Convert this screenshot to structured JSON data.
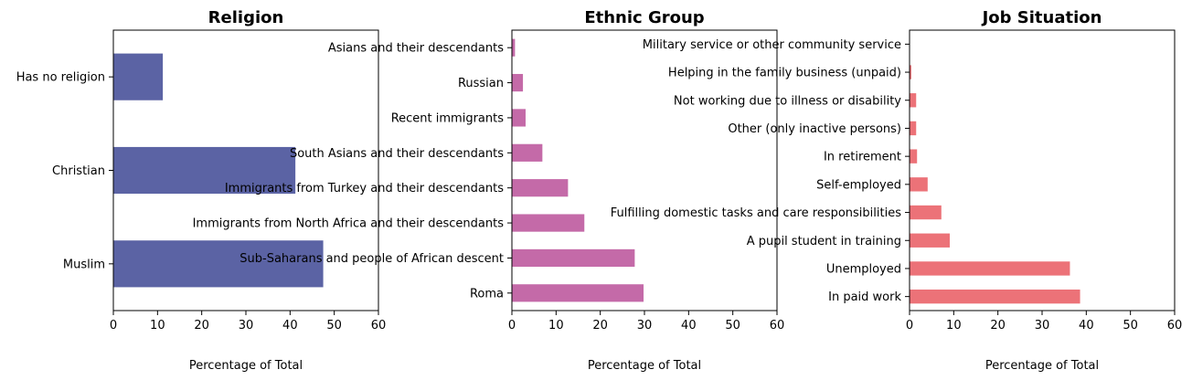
{
  "chart_data": [
    {
      "type": "bar",
      "orientation": "horizontal",
      "title": "Religion",
      "xlabel": "Percentage of Total",
      "xlim": [
        0,
        60
      ],
      "xticks": [
        0,
        10,
        20,
        30,
        40,
        50,
        60
      ],
      "categories": [
        "Muslim",
        "Christian",
        "Has no religion"
      ],
      "values": [
        47.5,
        41.2,
        11.2
      ],
      "color": "#5b63a4",
      "grid": false
    },
    {
      "type": "bar",
      "orientation": "horizontal",
      "title": "Ethnic Group",
      "xlabel": "Percentage of Total",
      "xlim": [
        0,
        60
      ],
      "xticks": [
        0,
        10,
        20,
        30,
        40,
        50,
        60
      ],
      "categories": [
        "Roma",
        "Sub-Saharans and people of African descent",
        "Immigrants from North Africa and their descendants",
        "Immigrants from Turkey and their descendants",
        "South Asians and their descendants",
        "Recent immigrants",
        "Russian",
        "Asians and their descendants"
      ],
      "values": [
        29.8,
        27.8,
        16.4,
        12.7,
        6.9,
        3.1,
        2.5,
        0.7
      ],
      "color": "#c46aa8",
      "grid": false
    },
    {
      "type": "bar",
      "orientation": "horizontal",
      "title": "Job Situation",
      "xlabel": "Percentage of Total",
      "xlim": [
        0,
        60
      ],
      "xticks": [
        0,
        10,
        20,
        30,
        40,
        50,
        60
      ],
      "categories": [
        "In paid work",
        "Unemployed",
        "A pupil student in training",
        "Fulfilling domestic tasks and care responsibilities",
        "Self-employed",
        "In retirement",
        "Other (only inactive persons)",
        "Not working due to illness or disability",
        "Helping in the family business (unpaid)",
        "Military service or other community service"
      ],
      "values": [
        38.6,
        36.3,
        9.1,
        7.2,
        4.1,
        1.7,
        1.5,
        1.5,
        0.4,
        0.1
      ],
      "color": "#ec7278",
      "grid": false
    }
  ]
}
